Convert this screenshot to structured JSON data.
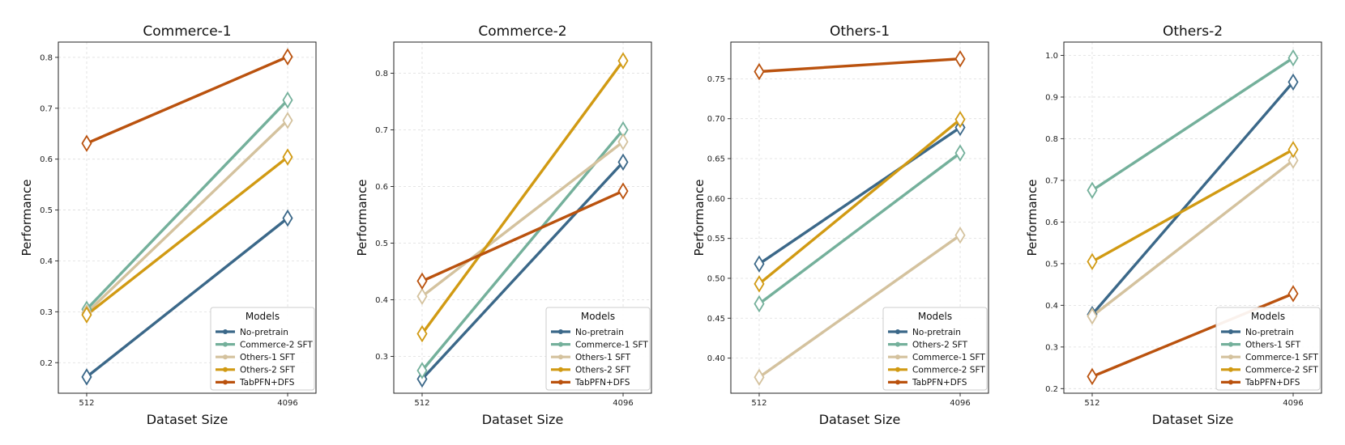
{
  "figure": {
    "colors": {
      "blue": "#3b6889",
      "green": "#74b09b",
      "tan": "#d4c29e",
      "gold": "#d19a13",
      "orange": "#ba520e"
    }
  },
  "chart_data": [
    {
      "type": "line",
      "title": "Commerce-1",
      "xlabel": "Dataset Size",
      "ylabel": "Performance",
      "x": [
        "512",
        "4096"
      ],
      "ylim": [
        0.14,
        0.83
      ],
      "yticks": [
        0.2,
        0.3,
        0.4,
        0.5,
        0.6,
        0.7,
        0.8
      ],
      "ytick_labels": [
        "0.2",
        "0.3",
        "0.4",
        "0.5",
        "0.6",
        "0.7",
        "0.8"
      ],
      "legend_title": "Models",
      "legend_position": "lower-right",
      "series": [
        {
          "name": "No-pretrain",
          "color": "#3b6889",
          "values": [
            0.172,
            0.484
          ]
        },
        {
          "name": "Commerce-2 SFT",
          "color": "#74b09b",
          "values": [
            0.305,
            0.716
          ]
        },
        {
          "name": "Others-1 SFT",
          "color": "#d4c29e",
          "values": [
            0.298,
            0.676
          ]
        },
        {
          "name": "Others-2 SFT",
          "color": "#d19a13",
          "values": [
            0.294,
            0.604
          ]
        },
        {
          "name": "TabPFN+DFS",
          "color": "#ba520e",
          "values": [
            0.631,
            0.801
          ]
        }
      ]
    },
    {
      "type": "line",
      "title": "Commerce-2",
      "xlabel": "Dataset Size",
      "ylabel": "Performance",
      "x": [
        "512",
        "4096"
      ],
      "ylim": [
        0.235,
        0.855
      ],
      "yticks": [
        0.3,
        0.4,
        0.5,
        0.6,
        0.7,
        0.8
      ],
      "ytick_labels": [
        "0.3",
        "0.4",
        "0.5",
        "0.6",
        "0.7",
        "0.8"
      ],
      "legend_title": "Models",
      "legend_position": "lower-right",
      "series": [
        {
          "name": "No-pretrain",
          "color": "#3b6889",
          "values": [
            0.26,
            0.643
          ]
        },
        {
          "name": "Commerce-1 SFT",
          "color": "#74b09b",
          "values": [
            0.275,
            0.7
          ]
        },
        {
          "name": "Others-1 SFT",
          "color": "#d4c29e",
          "values": [
            0.406,
            0.679
          ]
        },
        {
          "name": "Others-2 SFT",
          "color": "#d19a13",
          "values": [
            0.34,
            0.822
          ]
        },
        {
          "name": "TabPFN+DFS",
          "color": "#ba520e",
          "values": [
            0.433,
            0.592
          ]
        }
      ]
    },
    {
      "type": "line",
      "title": "Others-1",
      "xlabel": "Dataset Size",
      "ylabel": "Performance",
      "x": [
        "512",
        "4096"
      ],
      "ylim": [
        0.356,
        0.796
      ],
      "yticks": [
        0.4,
        0.45,
        0.5,
        0.55,
        0.6,
        0.65,
        0.7,
        0.75
      ],
      "ytick_labels": [
        "0.40",
        "0.45",
        "0.50",
        "0.55",
        "0.60",
        "0.65",
        "0.70",
        "0.75"
      ],
      "legend_title": "Models",
      "legend_position": "lower-right",
      "series": [
        {
          "name": "No-pretrain",
          "color": "#3b6889",
          "values": [
            0.518,
            0.689
          ]
        },
        {
          "name": "Others-2 SFT",
          "color": "#74b09b",
          "values": [
            0.468,
            0.657
          ]
        },
        {
          "name": "Commerce-1 SFT",
          "color": "#d4c29e",
          "values": [
            0.376,
            0.554
          ]
        },
        {
          "name": "Commerce-2 SFT",
          "color": "#d19a13",
          "values": [
            0.493,
            0.699
          ]
        },
        {
          "name": "TabPFN+DFS",
          "color": "#ba520e",
          "values": [
            0.759,
            0.775
          ]
        }
      ]
    },
    {
      "type": "line",
      "title": "Others-2",
      "xlabel": "Dataset Size",
      "ylabel": "Performance",
      "x": [
        "512",
        "4096"
      ],
      "ylim": [
        0.189,
        1.032
      ],
      "yticks": [
        0.2,
        0.3,
        0.4,
        0.5,
        0.6,
        0.7,
        0.8,
        0.9,
        1.0
      ],
      "ytick_labels": [
        "0.2",
        "0.3",
        "0.4",
        "0.5",
        "0.6",
        "0.7",
        "0.8",
        "0.9",
        "1.0"
      ],
      "legend_title": "Models",
      "legend_position": "lower-right",
      "series": [
        {
          "name": "No-pretrain",
          "color": "#3b6889",
          "values": [
            0.378,
            0.936
          ]
        },
        {
          "name": "Others-1 SFT",
          "color": "#74b09b",
          "values": [
            0.676,
            0.994
          ]
        },
        {
          "name": "Commerce-1 SFT",
          "color": "#d4c29e",
          "values": [
            0.374,
            0.748
          ]
        },
        {
          "name": "Commerce-2 SFT",
          "color": "#d19a13",
          "values": [
            0.505,
            0.774
          ]
        },
        {
          "name": "TabPFN+DFS",
          "color": "#ba520e",
          "values": [
            0.229,
            0.428
          ]
        }
      ]
    }
  ]
}
